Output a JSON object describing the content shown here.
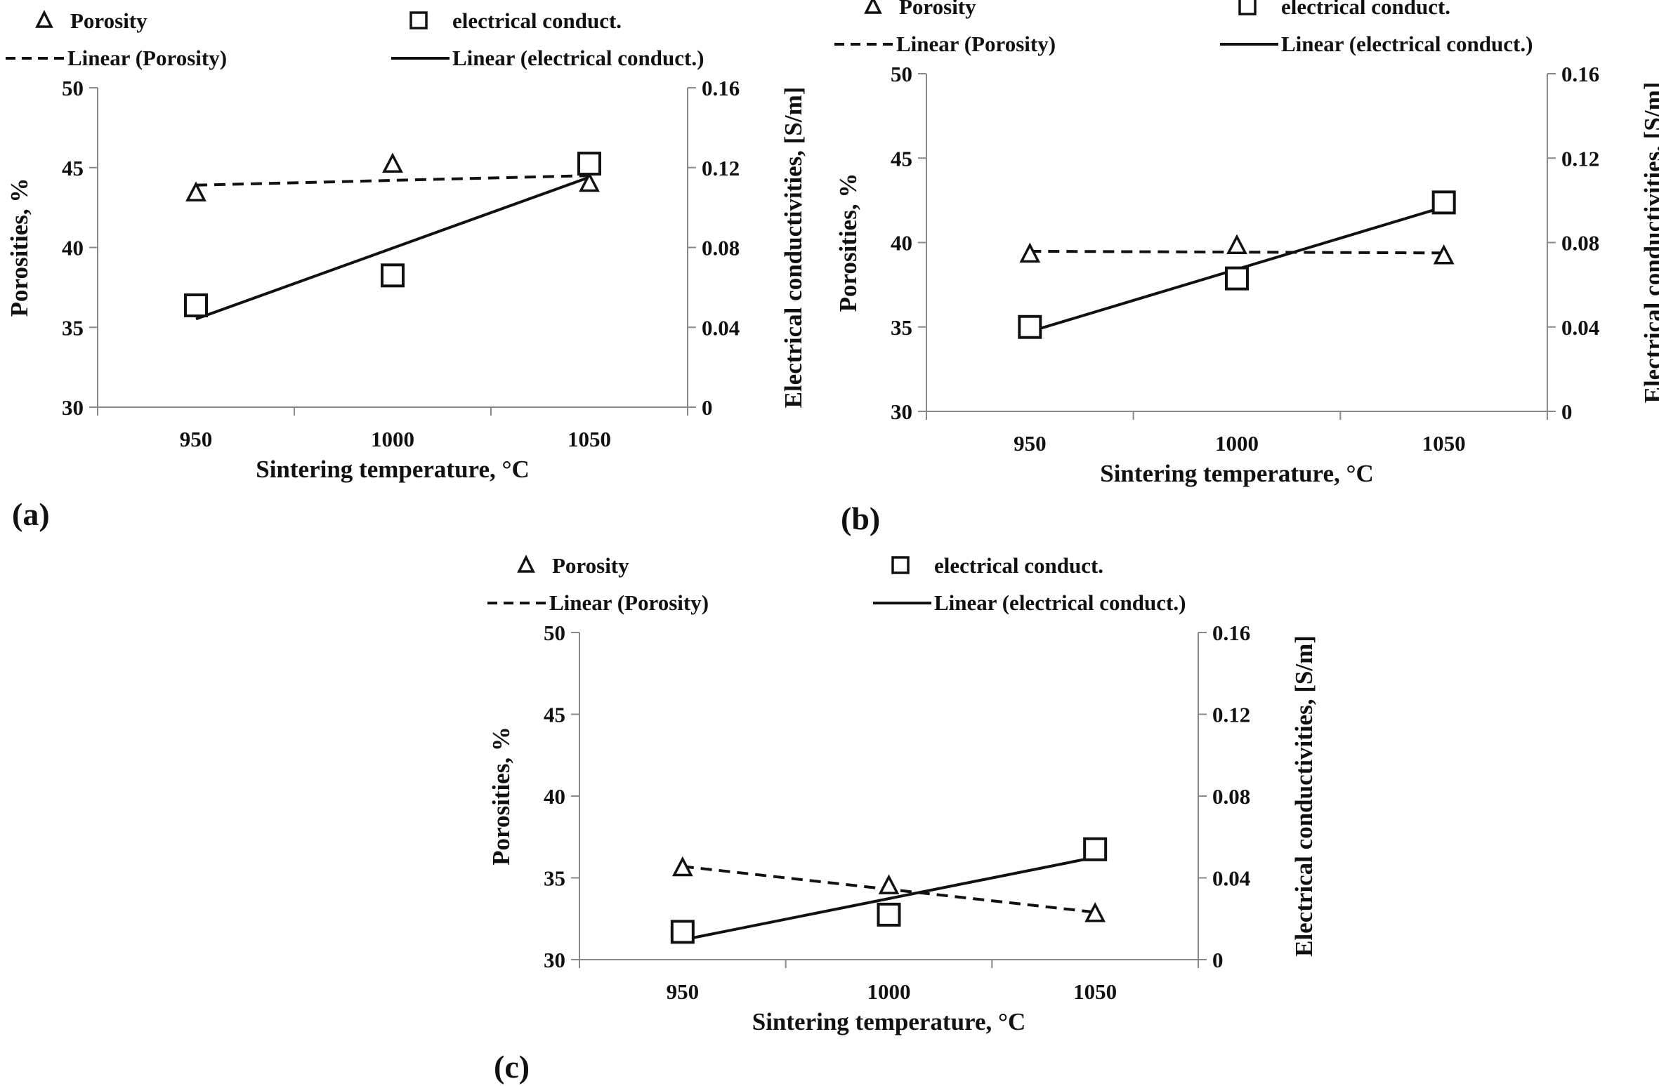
{
  "chart_data": [
    {
      "panel": "(a)",
      "type": "scatter",
      "title": "",
      "xlabel": "Sintering temperature, °C",
      "ylabel": "Porosities, %",
      "y2label": "Electrical conductivities, [S/m]",
      "categories": [
        "950",
        "1000",
        "1050"
      ],
      "ylim": [
        30,
        50
      ],
      "yticks": [
        "30",
        "35",
        "40",
        "45",
        "50"
      ],
      "y2lim": [
        0,
        0.16
      ],
      "y2ticks": [
        "0",
        "0.04",
        "0.08",
        "0.12",
        "0.16"
      ],
      "legend": [
        "Porosity",
        "electrical conduct.",
        "Linear (Porosity)",
        "Linear (electrical conduct.)"
      ],
      "legend_position": "top",
      "series": [
        {
          "name": "Porosity",
          "axis": "left",
          "marker": "triangle",
          "values": [
            43.4,
            45.2,
            44.0
          ]
        },
        {
          "name": "electrical conduct.",
          "axis": "right",
          "marker": "square",
          "values": [
            0.051,
            0.066,
            0.122
          ]
        }
      ]
    },
    {
      "panel": "(b)",
      "type": "scatter",
      "title": "",
      "xlabel": "Sintering temperature, °C",
      "ylabel": "Porosities, %",
      "y2label": "Electrical conductivities, [S/m]",
      "categories": [
        "950",
        "1000",
        "1050"
      ],
      "ylim": [
        30,
        50
      ],
      "yticks": [
        "30",
        "35",
        "40",
        "45",
        "50"
      ],
      "y2lim": [
        0,
        0.16
      ],
      "y2ticks": [
        "0",
        "0.04",
        "0.08",
        "0.12",
        "0.16"
      ],
      "legend": [
        "Porosity",
        "electrical conduct.",
        "Linear (Porosity)",
        "Linear (electrical conduct.)"
      ],
      "legend_position": "top",
      "series": [
        {
          "name": "Porosity",
          "axis": "left",
          "marker": "triangle",
          "values": [
            39.3,
            39.8,
            39.2
          ]
        },
        {
          "name": "electrical conduct.",
          "axis": "right",
          "marker": "square",
          "values": [
            0.04,
            0.063,
            0.099
          ]
        }
      ]
    },
    {
      "panel": "(c)",
      "type": "scatter",
      "title": "",
      "xlabel": "Sintering temperature, °C",
      "ylabel": "Porosities, %",
      "y2label": "Electrical conductivities, [S/m]",
      "categories": [
        "950",
        "1000",
        "1050"
      ],
      "ylim": [
        30,
        50
      ],
      "yticks": [
        "30",
        "35",
        "40",
        "45",
        "50"
      ],
      "y2lim": [
        0,
        0.16
      ],
      "y2ticks": [
        "0",
        "0.04",
        "0.08",
        "0.12",
        "0.16"
      ],
      "legend": [
        "Porosity",
        "electrical conduct.",
        "Linear (Porosity)",
        "Linear (electrical conduct.)"
      ],
      "legend_position": "top",
      "series": [
        {
          "name": "Porosity",
          "axis": "left",
          "marker": "triangle",
          "values": [
            35.6,
            34.5,
            32.8
          ]
        },
        {
          "name": "electrical conduct.",
          "axis": "right",
          "marker": "square",
          "values": [
            0.0136,
            0.022,
            0.054
          ]
        }
      ]
    }
  ]
}
